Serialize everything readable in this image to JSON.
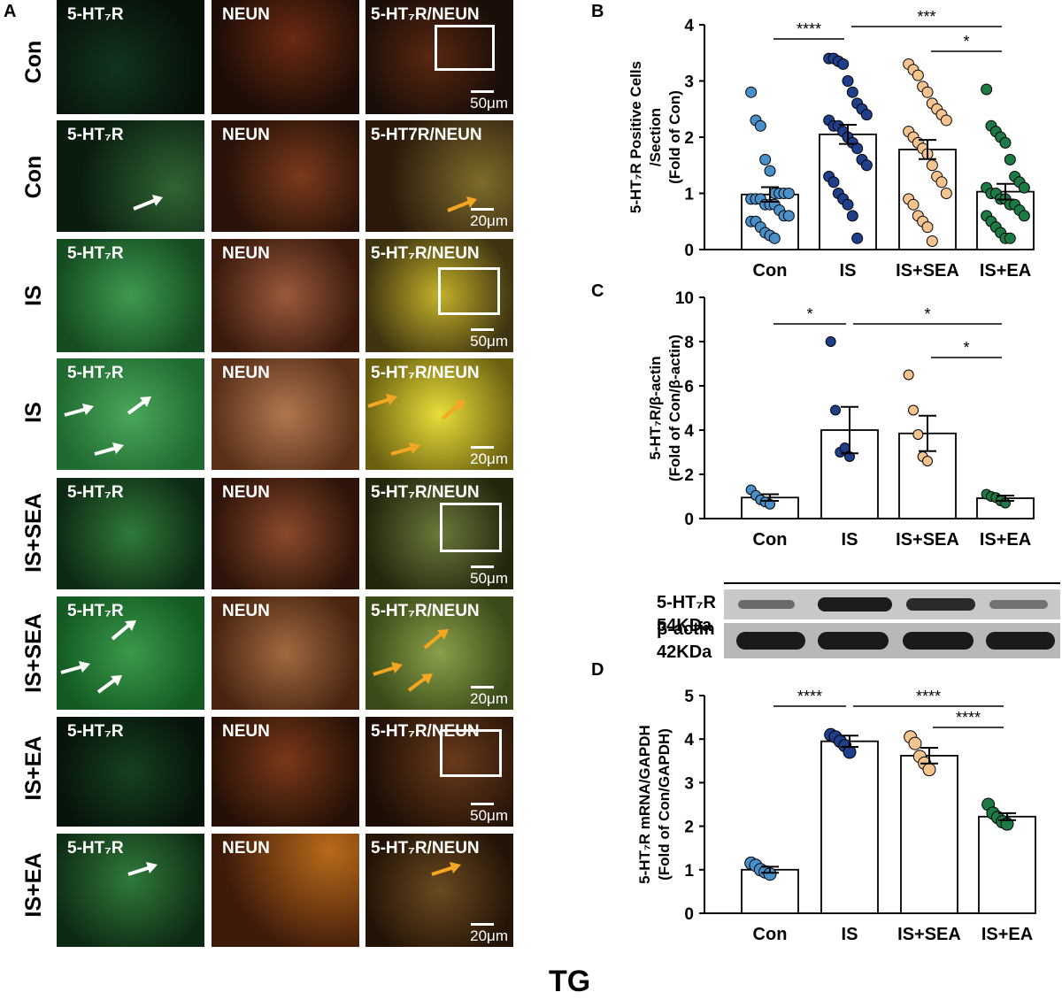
{
  "panel_letters": {
    "a": "A",
    "b": "B",
    "c": "C",
    "d": "D"
  },
  "row_labels": [
    "Con",
    "Con",
    "IS",
    "IS",
    "IS+SEA",
    "IS+SEA",
    "IS+EA",
    "IS+EA"
  ],
  "tile_labels": {
    "green": "5-HT₇R",
    "red": "NEUN",
    "merge": "5-HT₇R/NEUN",
    "merge_alt": "5-HT7R/NEUN"
  },
  "scale_labels": {
    "low": "50μm",
    "high": "20μm"
  },
  "colors": {
    "con_point": "#4a90c8",
    "is_point": "#1f3f8a",
    "sea_point": "#f5c48e",
    "ea_point": "#1e7a45",
    "arrow_white": "#ffffff",
    "arrow_yellow": "#f5a623"
  },
  "western_blot": {
    "band1_label_line1": "5-HT₇R",
    "band1_label_line2": "54KDa",
    "band2_label_line1": "β-actin",
    "band2_label_line2": "42KDa"
  },
  "footer": "TG",
  "chart_data": [
    {
      "panel": "B",
      "type": "bar",
      "categories": [
        "Con",
        "IS",
        "IS+SEA",
        "IS+EA"
      ],
      "values": [
        0.98,
        2.05,
        1.78,
        1.03
      ],
      "errors": [
        0.13,
        0.17,
        0.17,
        0.14
      ],
      "ylabel": "5-HT₇R Positive Cells /Section (Fold of Con)",
      "ylim": [
        0,
        4
      ],
      "yticks": [
        0,
        1,
        2,
        3,
        4
      ],
      "points": [
        [
          2.8,
          2.3,
          2.2,
          1.6,
          1.4,
          1.0,
          1.0,
          1.0,
          1.0,
          0.9,
          0.9,
          0.9,
          0.8,
          0.8,
          0.8,
          0.7,
          0.6,
          0.6,
          0.5,
          0.5,
          0.4,
          0.3,
          0.25,
          0.2
        ],
        [
          3.4,
          3.4,
          3.35,
          3.3,
          3.0,
          2.8,
          2.6,
          2.5,
          2.4,
          2.3,
          2.2,
          2.2,
          2.1,
          2.0,
          1.9,
          1.8,
          1.6,
          1.5,
          1.3,
          1.2,
          1.0,
          0.9,
          0.8,
          0.6,
          0.2
        ],
        [
          3.3,
          3.2,
          3.1,
          2.9,
          2.8,
          2.6,
          2.5,
          2.4,
          2.3,
          2.1,
          2.0,
          1.9,
          1.8,
          1.7,
          1.5,
          1.3,
          1.2,
          1.0,
          0.9,
          0.8,
          0.6,
          0.5,
          0.4,
          0.15
        ],
        [
          2.85,
          2.2,
          2.1,
          2.0,
          1.9,
          1.6,
          1.3,
          1.2,
          1.1,
          1.1,
          1.0,
          1.0,
          0.9,
          0.9,
          0.8,
          0.8,
          0.7,
          0.6,
          0.6,
          0.5,
          0.4,
          0.3,
          0.2,
          0.2
        ]
      ],
      "significance": [
        {
          "from": 0,
          "to": 1,
          "label": "****"
        },
        {
          "from": 1,
          "to": 3,
          "label": "***"
        },
        {
          "from": 2,
          "to": 3,
          "label": "*"
        }
      ]
    },
    {
      "panel": "C",
      "type": "bar",
      "categories": [
        "Con",
        "IS",
        "IS+SEA",
        "IS+EA"
      ],
      "values": [
        0.95,
        4.0,
        3.85,
        0.92
      ],
      "errors": [
        0.15,
        1.05,
        0.8,
        0.12
      ],
      "ylabel": "5-HT₇R/β-actin (Fold of Con/β-actin)",
      "ylim": [
        0,
        10
      ],
      "yticks": [
        0,
        2,
        4,
        6,
        8,
        10
      ],
      "points": [
        [
          1.3,
          1.05,
          0.85,
          0.75,
          0.65
        ],
        [
          8.0,
          4.9,
          3.0,
          3.2,
          2.8
        ],
        [
          6.5,
          4.9,
          3.8,
          2.8,
          2.6
        ],
        [
          1.1,
          1.0,
          0.95,
          0.8,
          0.7
        ]
      ],
      "significance": [
        {
          "from": 0,
          "to": 1,
          "label": "*"
        },
        {
          "from": 1,
          "to": 3,
          "label": "*"
        },
        {
          "from": 2,
          "to": 3,
          "label": "*"
        }
      ]
    },
    {
      "panel": "D",
      "type": "bar",
      "categories": [
        "Con",
        "IS",
        "IS+SEA",
        "IS+EA"
      ],
      "values": [
        1.0,
        3.95,
        3.62,
        2.22
      ],
      "errors": [
        0.07,
        0.13,
        0.18,
        0.08
      ],
      "ylabel": "5-HT₇R mRNA/GAPDH (Fold of Con/GAPDH)",
      "ylim": [
        0,
        5
      ],
      "yticks": [
        0,
        1,
        2,
        3,
        4,
        5
      ],
      "points": [
        [
          1.15,
          1.1,
          1.0,
          0.95,
          0.9
        ],
        [
          4.1,
          4.05,
          3.95,
          3.85,
          3.7
        ],
        [
          4.05,
          3.9,
          3.6,
          3.45,
          3.3
        ],
        [
          2.5,
          2.3,
          2.2,
          2.1,
          2.05
        ]
      ],
      "significance": [
        {
          "from": 0,
          "to": 1,
          "label": "****"
        },
        {
          "from": 1,
          "to": 3,
          "label": "****"
        },
        {
          "from": 2,
          "to": 3,
          "label": "****"
        }
      ]
    }
  ]
}
